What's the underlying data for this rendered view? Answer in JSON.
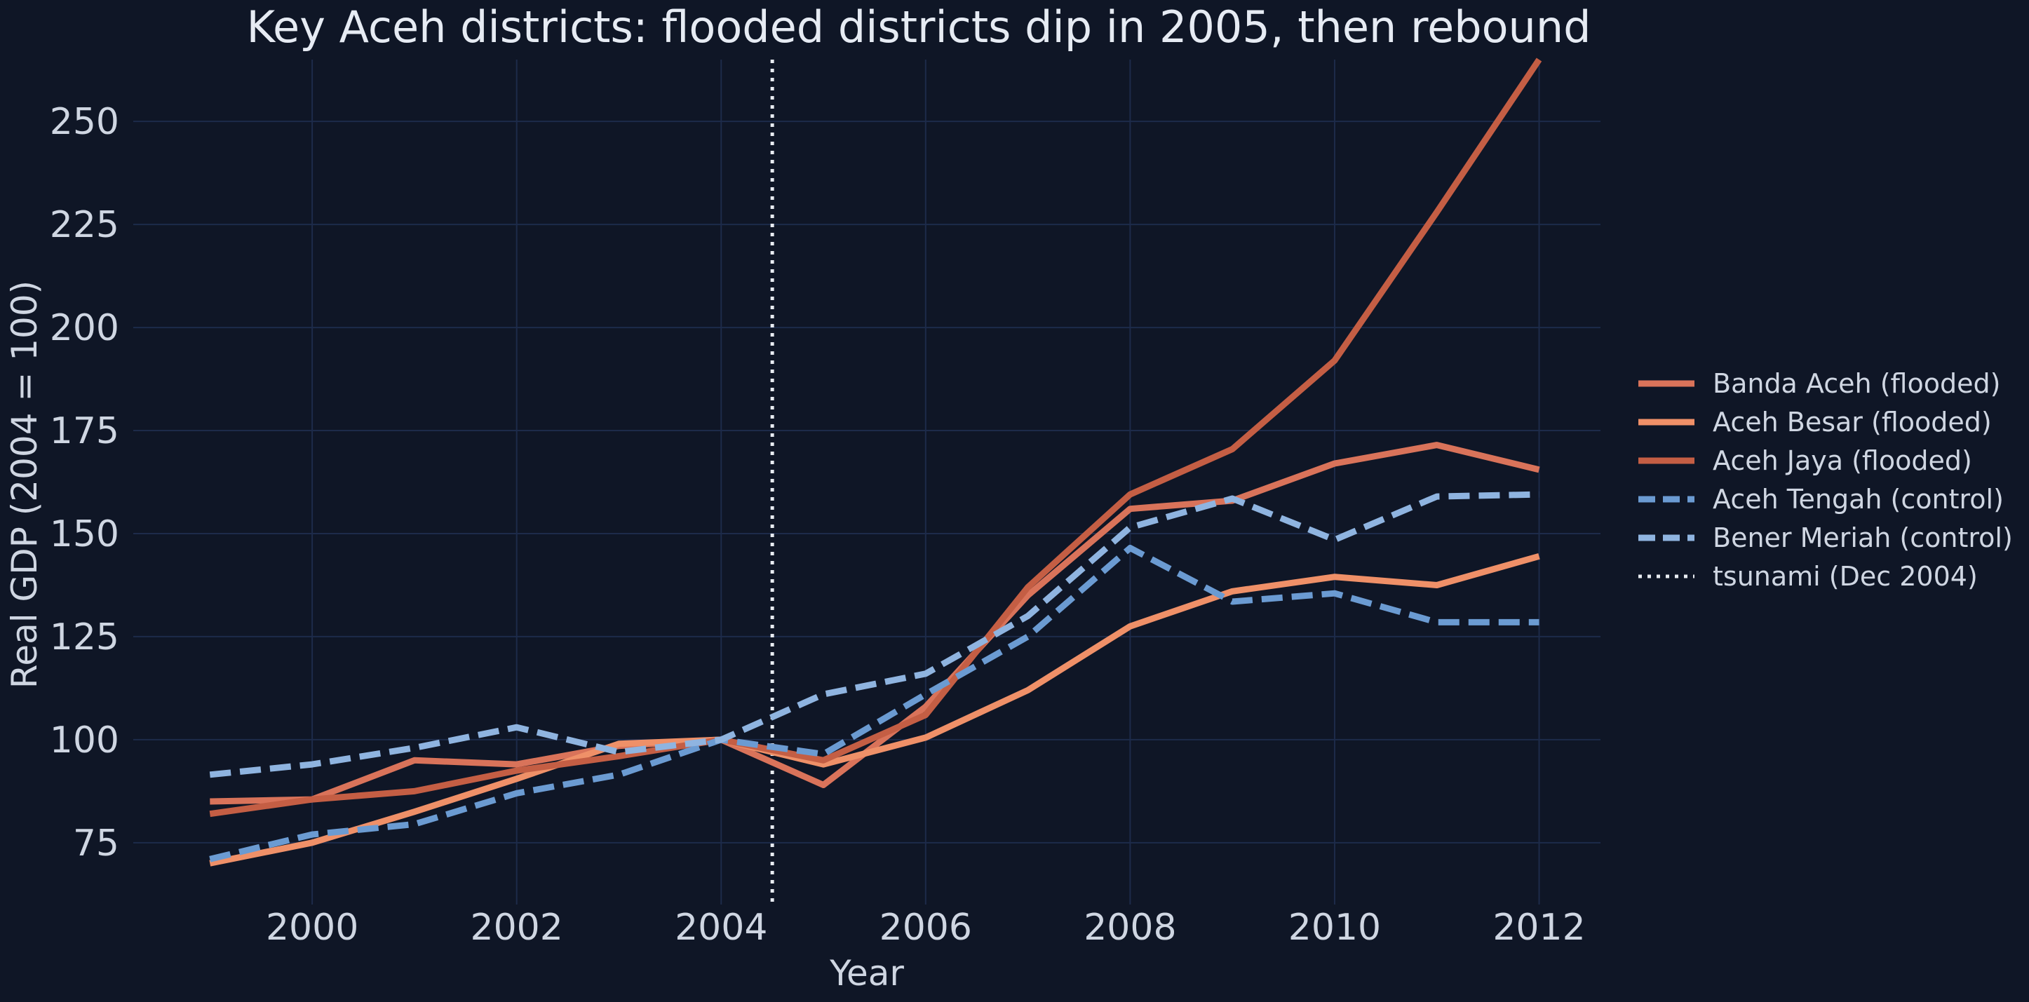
{
  "chart_data": {
    "type": "line",
    "title": "Key Aceh districts: flooded districts dip in 2005, then rebound",
    "xlabel": "Year",
    "ylabel": "Real GDP (2004 = 100)",
    "xlim": [
      1998.25,
      2012.6
    ],
    "ylim": [
      60,
      265
    ],
    "xticks": [
      2000,
      2002,
      2004,
      2006,
      2008,
      2010,
      2012
    ],
    "yticks": [
      75,
      100,
      125,
      150,
      175,
      200,
      225,
      250
    ],
    "grid": true,
    "legend_position": "right",
    "x": [
      1999,
      2000,
      2001,
      2002,
      2003,
      2004,
      2005,
      2006,
      2007,
      2008,
      2009,
      2010,
      2011,
      2012
    ],
    "series": [
      {
        "name": "Banda Aceh (flooded)",
        "color": "#d9735a",
        "dash": "solid",
        "values": [
          85,
          85.5,
          95,
          94,
          98.5,
          100,
          89,
          108,
          135,
          156,
          158,
          167,
          171.5,
          165.5
        ]
      },
      {
        "name": "Aceh Besar (flooded)",
        "color": "#ef9068",
        "dash": "solid",
        "values": [
          70,
          75,
          82.5,
          90.5,
          99,
          100,
          94,
          100.5,
          112,
          127.5,
          136,
          139.5,
          137.5,
          144.5
        ]
      },
      {
        "name": "Aceh Jaya (flooded)",
        "color": "#c45e44",
        "dash": "solid",
        "values": [
          82,
          85.5,
          87.5,
          92.5,
          96,
          100,
          95,
          106,
          137,
          159.5,
          170.5,
          192,
          228,
          265
        ]
      },
      {
        "name": "Aceh Tengah (control)",
        "color": "#6b9bd2",
        "dash": "dashed",
        "values": [
          71,
          77,
          79.5,
          87,
          91.5,
          100,
          96.5,
          111,
          125,
          146.5,
          133.5,
          135.5,
          128.5,
          128.5
        ]
      },
      {
        "name": "Bener Meriah (control)",
        "color": "#8fb4e0",
        "dash": "dashed",
        "values": [
          91.5,
          94,
          98,
          103,
          97,
          100,
          111,
          116,
          130,
          151.5,
          158.5,
          148.5,
          159,
          159.5
        ]
      }
    ],
    "annotation": {
      "name": "tsunami (Dec 2004)",
      "x": 2004.5,
      "color": "#e8ecf2",
      "dash": "dotted"
    }
  }
}
